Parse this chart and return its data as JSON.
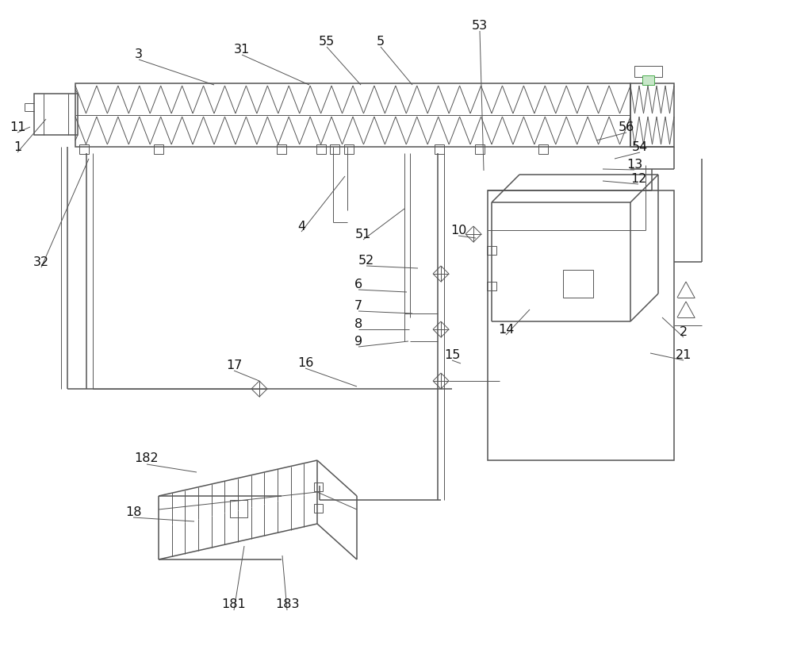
{
  "bg_color": "#ffffff",
  "line_color": "#555555",
  "lw_thin": 0.7,
  "lw_med": 1.1,
  "lw_thick": 1.5,
  "fs": 11.5,
  "label_color": "#111111"
}
